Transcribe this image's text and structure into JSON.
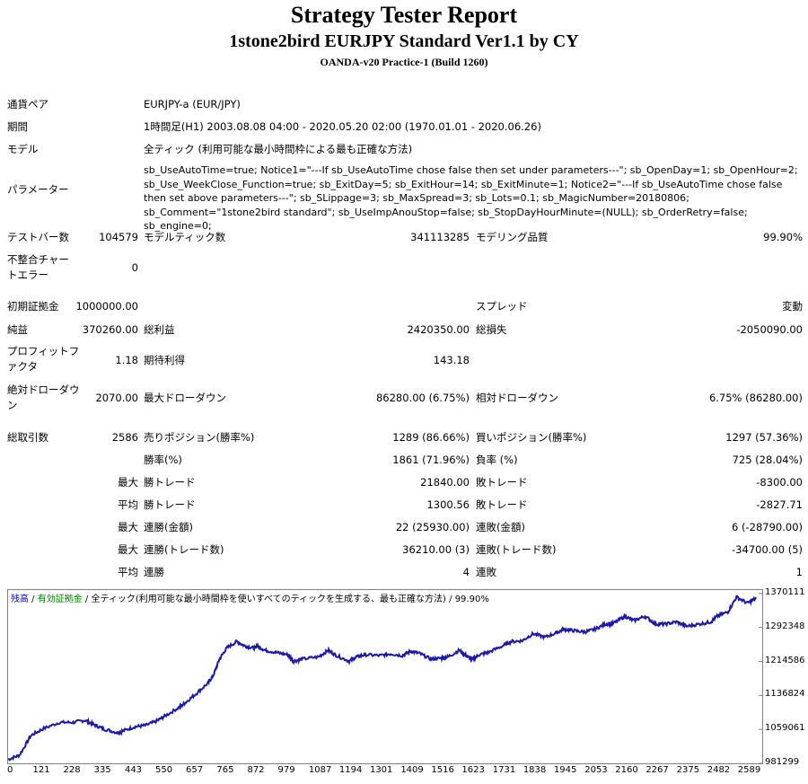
{
  "header": {
    "title": "Strategy Tester Report",
    "subtitle": "1stone2bird EURJPY Standard Ver1.1 by CY",
    "server": "OANDA-v20 Practice-1 (Build 1260)"
  },
  "settings": {
    "symbol_label": "通貨ペア",
    "symbol_value": "EURJPY-a (EUR/JPY)",
    "period_label": "期間",
    "period_value": "1時間足(H1) 2003.08.08 04:00 - 2020.05.20 02:00 (1970.01.01 - 2020.06.26)",
    "model_label": "モデル",
    "model_value": "全ティック (利用可能な最小時間枠による最も正確な方法)",
    "params_label": "パラメーター",
    "params_value": "sb_UseAutoTime=true; Notice1=\"---If sb_UseAutoTime chose false then set under parameters---\"; sb_OpenDay=1; sb_OpenHour=2; sb_Use_WeekClose_Function=true; sb_ExitDay=5; sb_ExitHour=14; sb_ExitMinute=1; Notice2=\"---If sb_UseAutoTime chose false then set above parameters---\"; sb_SLippage=3; sb_MaxSpread=3; sb_Lots=0.1; sb_MagicNumber=20180806; sb_Comment=\"1stone2bird standard\"; sb_UseImpAnouStop=false; sb_StopDayHourMinute=(NULL); sb_OrderRetry=false; sb_engine=0;"
  },
  "stats": {
    "bars_label": "テストバー数",
    "bars_value": "104579",
    "ticks_label": "モデルティック数",
    "ticks_value": "341113285",
    "quality_label": "モデリング品質",
    "quality_value": "99.90%",
    "mismatch_label": "不整合チャートエラー",
    "mismatch_value": "0",
    "deposit_label": "初期証拠金",
    "deposit_value": "1000000.00",
    "spread_label": "スプレッド",
    "spread_value": "変動",
    "net_label": "純益",
    "net_value": "370260.00",
    "gross_profit_label": "総利益",
    "gross_profit_value": "2420350.00",
    "gross_loss_label": "総損失",
    "gross_loss_value": "-2050090.00",
    "pf_label": "プロフィットファクタ",
    "pf_value": "1.18",
    "payoff_label": "期待利得",
    "payoff_value": "143.18",
    "abs_dd_label": "絶対ドローダウン",
    "abs_dd_value": "2070.00",
    "max_dd_label": "最大ドローダウン",
    "max_dd_value": "86280.00 (6.75%)",
    "rel_dd_label": "相対ドローダウン",
    "rel_dd_value": "6.75% (86280.00)",
    "trades_label": "総取引数",
    "trades_value": "2586",
    "short_label": "売りポジション(勝率%)",
    "short_value": "1289 (86.66%)",
    "long_label": "買いポジション(勝率%)",
    "long_value": "1297 (57.36%)",
    "win_label": "勝率(%)",
    "win_value": "1861 (71.96%)",
    "loss_label": "負率 (%)",
    "loss_value": "725 (28.04%)",
    "max_label": "最大",
    "avg_label": "平均",
    "largest_win_label": "勝トレード",
    "largest_win_value": "21840.00",
    "largest_loss_label": "敗トレード",
    "largest_loss_value": "-8300.00",
    "avg_win_label": "勝トレード",
    "avg_win_value": "1300.56",
    "avg_loss_label": "敗トレード",
    "avg_loss_value": "-2827.71",
    "cons_wins_label": "連勝(金額)",
    "cons_wins_value": "22 (25930.00)",
    "cons_losses_label": "連敗(金額)",
    "cons_losses_value": "6 (-28790.00)",
    "cons_profit_label": "連勝(トレード数)",
    "cons_profit_value": "36210.00 (3)",
    "cons_loss_label": "連敗(トレード数)",
    "cons_loss_value": "-34700.00 (5)",
    "avg_cons_wins_label": "連勝",
    "avg_cons_wins_value": "4",
    "avg_cons_losses_label": "連敗",
    "avg_cons_losses_value": "1"
  },
  "chart_data": {
    "type": "line",
    "legend_balance": "残高",
    "legend_sep1": " / ",
    "legend_equity": "有効証拠金",
    "legend_rest": " / 全ティック(利用可能な最小時間枠を使いすべてのティックを生成する、最も正確な方法) / 99.90%",
    "colors": {
      "balance": "#1a1aa6",
      "legend_balance": "#0000cc",
      "legend_equity": "#008000"
    },
    "y_ticks": [
      "1370111",
      "1292348",
      "1214586",
      "1136824",
      "1059061",
      "981299"
    ],
    "y_tick_values": [
      1370111,
      1292348,
      1214586,
      1136824,
      1059061,
      981299
    ],
    "ylim": [
      981299,
      1378000
    ],
    "x_ticks": [
      "0",
      "121",
      "228",
      "335",
      "443",
      "550",
      "657",
      "765",
      "872",
      "979",
      "1087",
      "1194",
      "1301",
      "1409",
      "1516",
      "1623",
      "1731",
      "1838",
      "1945",
      "2053",
      "2160",
      "2267",
      "2375",
      "2482",
      "2589"
    ],
    "x_tick_values": [
      0,
      121,
      228,
      335,
      443,
      550,
      657,
      765,
      872,
      979,
      1087,
      1194,
      1301,
      1409,
      1516,
      1623,
      1731,
      1838,
      1945,
      2053,
      2160,
      2267,
      2375,
      2482,
      2589
    ],
    "xlim": [
      0,
      2640
    ],
    "series": [
      {
        "x": [
          0,
          40,
          80,
          121,
          180,
          228,
          270,
          300,
          335,
          380,
          400,
          443,
          480,
          520,
          550,
          600,
          620,
          657,
          700,
          720,
          740,
          765,
          800,
          830,
          860,
          872,
          900,
          940,
          979,
          1000,
          1030,
          1087,
          1120,
          1150,
          1194,
          1220,
          1250,
          1301,
          1340,
          1380,
          1409,
          1440,
          1480,
          1516,
          1540,
          1580,
          1600,
          1623,
          1650,
          1680,
          1731,
          1760,
          1800,
          1838,
          1880,
          1920,
          1945,
          1980,
          2020,
          2053,
          2090,
          2120,
          2160,
          2190,
          2230,
          2267,
          2300,
          2340,
          2375,
          2420,
          2460,
          2482,
          2520,
          2550,
          2589,
          2620
        ],
        "y": [
          990000,
          1000000,
          1045000,
          1060000,
          1075000,
          1075000,
          1080000,
          1070000,
          1060000,
          1052000,
          1055000,
          1065000,
          1068000,
          1078000,
          1090000,
          1110000,
          1120000,
          1140000,
          1165000,
          1185000,
          1220000,
          1245000,
          1260000,
          1250000,
          1245000,
          1250000,
          1240000,
          1235000,
          1230000,
          1215000,
          1220000,
          1225000,
          1240000,
          1228000,
          1215000,
          1225000,
          1230000,
          1228000,
          1232000,
          1228000,
          1238000,
          1233000,
          1220000,
          1222000,
          1225000,
          1240000,
          1230000,
          1218000,
          1230000,
          1235000,
          1250000,
          1260000,
          1262000,
          1278000,
          1270000,
          1280000,
          1288000,
          1285000,
          1282000,
          1288000,
          1300000,
          1302000,
          1318000,
          1308000,
          1318000,
          1300000,
          1300000,
          1305000,
          1295000,
          1300000,
          1305000,
          1318000,
          1328000,
          1362000,
          1348000,
          1360000
        ]
      }
    ]
  }
}
